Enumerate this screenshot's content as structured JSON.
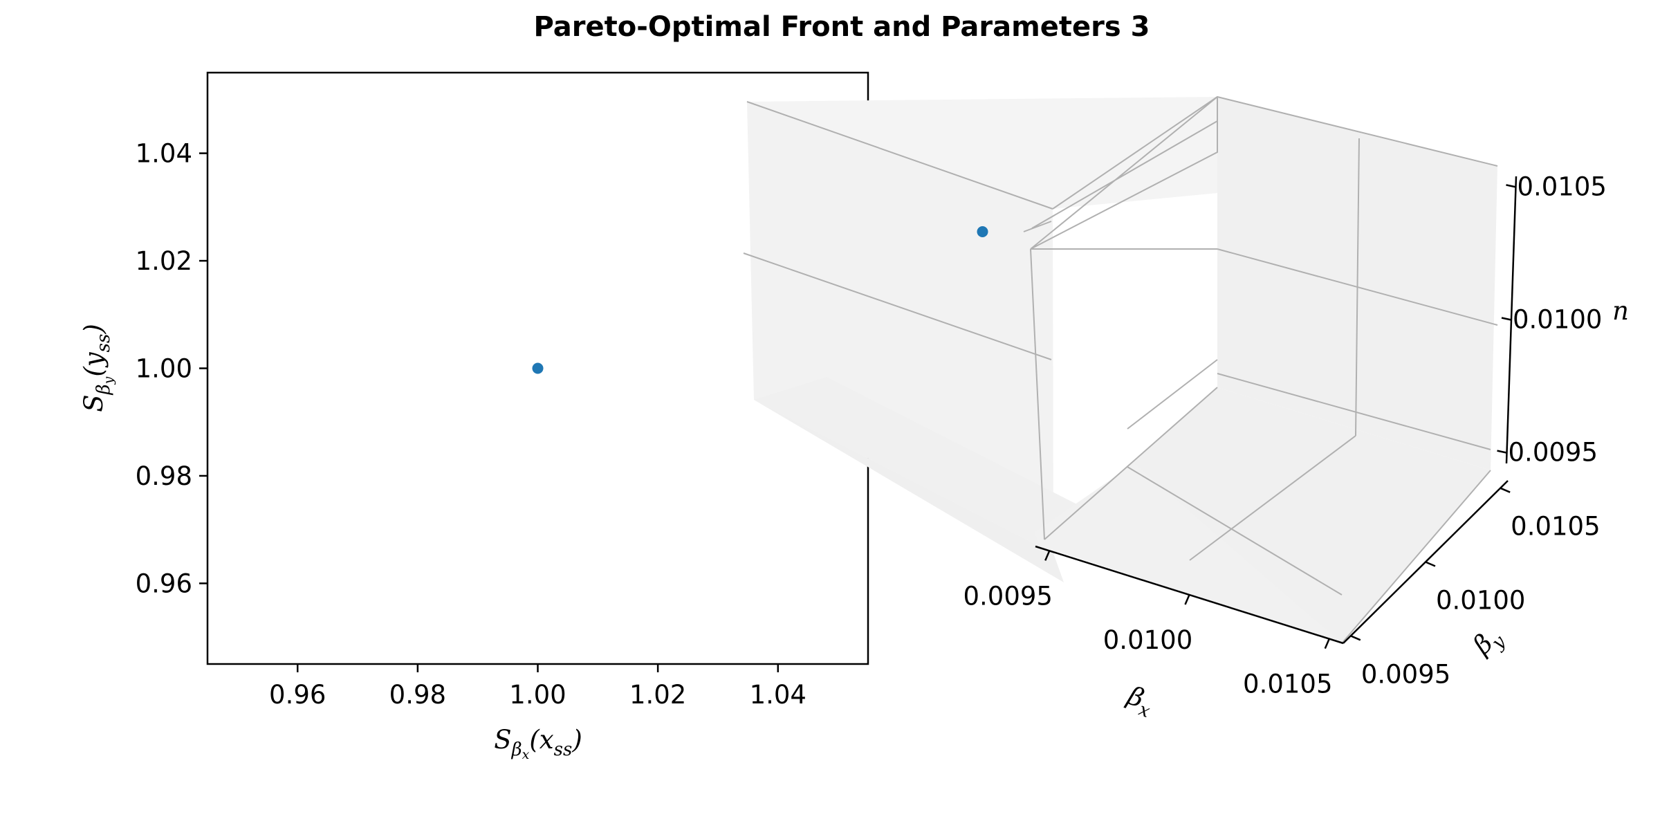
{
  "figure": {
    "title": "Pareto-Optimal Front and Parameters 3"
  },
  "chart_data": [
    {
      "type": "scatter",
      "title": "",
      "xlabel": "S_{β_x}(x_{ss})",
      "ylabel": "S_{β_y}(y_{ss})",
      "xlim": [
        0.945,
        1.055
      ],
      "ylim": [
        0.945,
        1.055
      ],
      "xticks": [
        0.96,
        0.98,
        1.0,
        1.02,
        1.04
      ],
      "yticks": [
        0.96,
        0.98,
        1.0,
        1.02,
        1.04
      ],
      "xtick_labels": [
        "0.96",
        "0.98",
        "1.00",
        "1.02",
        "1.04"
      ],
      "ytick_labels": [
        "0.96",
        "0.98",
        "1.00",
        "1.02",
        "1.04"
      ],
      "grid": false,
      "color": "#1f77b4",
      "points": [
        {
          "x": 1.0,
          "y": 1.0
        }
      ]
    },
    {
      "type": "scatter3d",
      "title": "",
      "xlabel": "β_x",
      "ylabel": "β_y",
      "zlabel": "n",
      "xlim": [
        0.0095,
        0.0105
      ],
      "ylim": [
        0.0095,
        0.0105
      ],
      "zlim": [
        0.0095,
        0.0105
      ],
      "xticks": [
        0.0095,
        0.01,
        0.0105
      ],
      "yticks": [
        0.0095,
        0.01,
        0.0105
      ],
      "zticks": [
        0.0095,
        0.01,
        0.0105
      ],
      "xtick_labels": [
        "0.0095",
        "0.0100",
        "0.0105"
      ],
      "ytick_labels": [
        "0.0095",
        "0.0100",
        "0.0105"
      ],
      "ztick_labels": [
        "0.0095",
        "0.0100",
        "0.0105"
      ],
      "grid": true,
      "color": "#1f77b4",
      "points": [
        {
          "x": 0.01,
          "y": 0.01,
          "z": 0.01
        }
      ]
    }
  ]
}
